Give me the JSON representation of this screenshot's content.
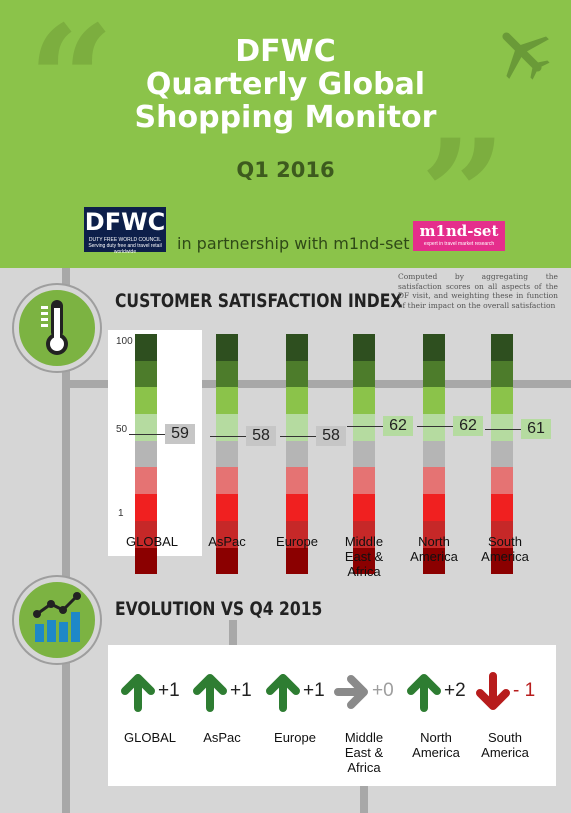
{
  "header": {
    "title_line1": "DFWC",
    "title_line2": "Quarterly Global",
    "title_line3": "Shopping Monitor",
    "quarter": "Q1 2016",
    "partner_text": "in partnership with m1nd-set",
    "logo_dfwc": "DFWC",
    "logo_dfwc_sub": "DUTY FREE WORLD COUNCIL",
    "logo_dfwc_tagline": "Serving duty free and travel retail worldwide",
    "logo_mindset": "m1nd-set",
    "logo_mindset_sub": "expert in travel market research"
  },
  "csi": {
    "title": "CUSTOMER SATISFACTION INDEX",
    "note": "Computed by aggregating the satisfaction scores on all aspects of the DF visit, and weighting these in function of their impact on the overall satisfaction",
    "axis": [
      "100",
      "50",
      "1"
    ],
    "scale_colors": [
      "#2e4f1f",
      "#4d7c2b",
      "#8bc34a",
      "#b5dba0",
      "#b5b5b5",
      "#e57373",
      "#f02020",
      "#c62828",
      "#8b0000"
    ],
    "regions": [
      {
        "name": "GLOBAL",
        "score": "59",
        "highlight": "gray"
      },
      {
        "name": "AsPac",
        "score": "58",
        "highlight": "gray"
      },
      {
        "name": "Europe",
        "score": "58",
        "highlight": "gray"
      },
      {
        "name": "Middle East & Africa",
        "score": "62",
        "highlight": "green"
      },
      {
        "name": "North America",
        "score": "62",
        "highlight": "green"
      },
      {
        "name": "South America",
        "score": "61",
        "highlight": "green"
      }
    ]
  },
  "evolution": {
    "title": "EVOLUTION VS Q4 2015",
    "items": [
      {
        "name": "GLOBAL",
        "delta": "+1",
        "direction": "up"
      },
      {
        "name": "AsPac",
        "delta": "+1",
        "direction": "up"
      },
      {
        "name": "Europe",
        "delta": "+1",
        "direction": "up"
      },
      {
        "name": "Middle East & Africa",
        "delta": "+0",
        "direction": "flat"
      },
      {
        "name": "North America",
        "delta": "+2",
        "direction": "up"
      },
      {
        "name": "South America",
        "delta": "- 1",
        "direction": "down"
      }
    ],
    "colors": {
      "up": "#2e7d32",
      "flat": "#8a8a8a",
      "down": "#b71c1c"
    }
  }
}
